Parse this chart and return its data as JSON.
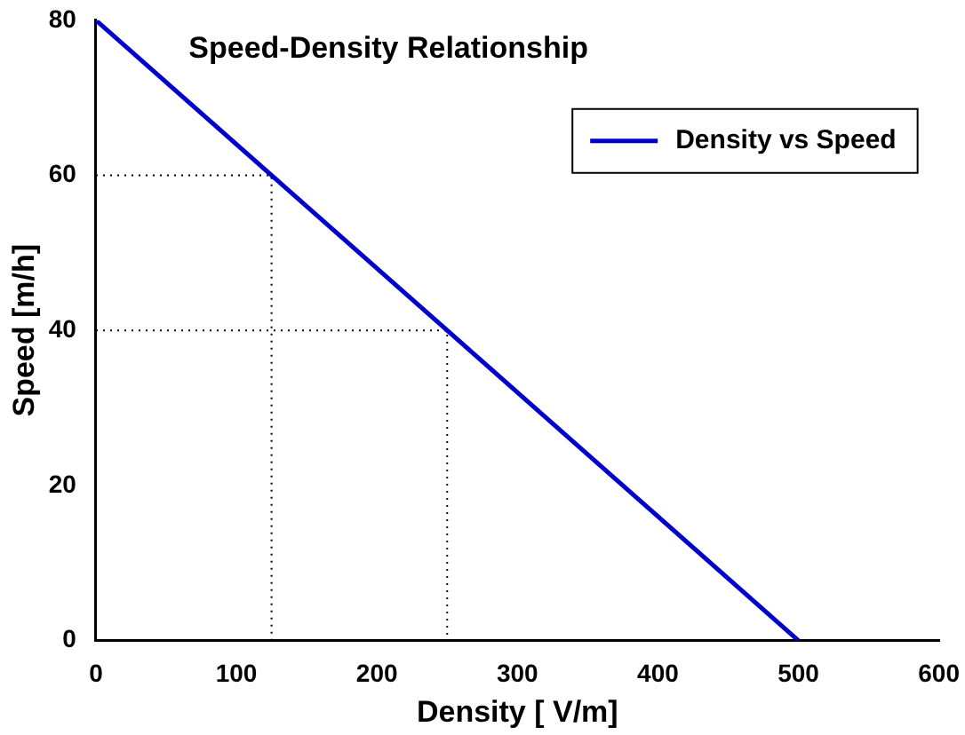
{
  "chart_data": {
    "type": "line",
    "title": "Speed-Density Relationship",
    "xlabel": "Density [ V/m]",
    "ylabel": "Speed [m/h]",
    "xlim": [
      0,
      600
    ],
    "xticks": [
      0,
      100,
      200,
      300,
      400,
      500,
      600
    ],
    "ylim": [
      0,
      80
    ],
    "yticks": [
      0,
      20,
      40,
      60,
      80
    ],
    "grid": false,
    "legend": "top right",
    "marker": "none",
    "series": [
      {
        "name": "Density vs Speed",
        "color": "#0000cc",
        "x": [
          0,
          500
        ],
        "values": [
          80,
          0
        ],
        "line_style": "solid"
      },
      {
        "color": "#000000",
        "x": [
          0,
          125,
          125
        ],
        "values": [
          60,
          60,
          0
        ],
        "line_style": "dotted"
      },
      {
        "color": "#000000",
        "x": [
          0,
          250,
          250
        ],
        "values": [
          40,
          40,
          0
        ],
        "line_style": "dotted"
      }
    ]
  }
}
